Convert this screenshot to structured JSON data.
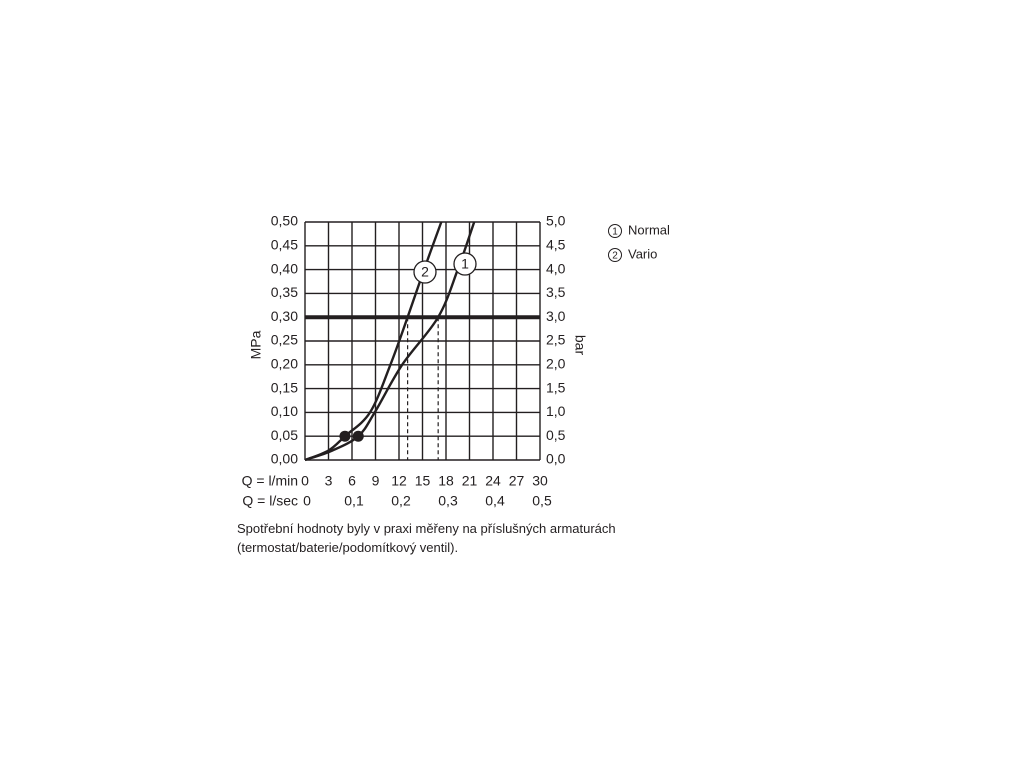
{
  "chart_data": {
    "type": "line",
    "x_label": "Q = l/min",
    "x2_label": "Q = l/sec",
    "y_label": "MPa",
    "y2_label": "bar",
    "xlim": [
      0,
      30
    ],
    "xticks": [
      0,
      3,
      6,
      9,
      12,
      15,
      18,
      21,
      24,
      27,
      30
    ],
    "x2lim": [
      0,
      0.5
    ],
    "x2ticks": [
      0,
      {
        "value": 0.1,
        "label": "0,1"
      },
      {
        "value": 0.2,
        "label": "0,2"
      },
      {
        "value": 0.3,
        "label": "0,3"
      },
      {
        "value": 0.4,
        "label": "0,4"
      },
      {
        "value": 0.5,
        "label": "0,5"
      }
    ],
    "ylim": [
      0,
      0.5
    ],
    "yticks": [
      {
        "value": 0,
        "label": "0,00"
      },
      {
        "value": 0.05,
        "label": "0,05"
      },
      {
        "value": 0.1,
        "label": "0,10"
      },
      {
        "value": 0.15,
        "label": "0,15"
      },
      {
        "value": 0.2,
        "label": "0,20"
      },
      {
        "value": 0.25,
        "label": "0,25"
      },
      {
        "value": 0.3,
        "label": "0,30"
      },
      {
        "value": 0.35,
        "label": "0,35"
      },
      {
        "value": 0.4,
        "label": "0,40"
      },
      {
        "value": 0.45,
        "label": "0,45"
      },
      {
        "value": 0.5,
        "label": "0,50"
      }
    ],
    "y2lim": [
      0,
      5
    ],
    "y2ticks": [
      {
        "value": 0,
        "label": "0,0"
      },
      {
        "value": 0.5,
        "label": "0,5"
      },
      {
        "value": 1,
        "label": "1,0"
      },
      {
        "value": 1.5,
        "label": "1,5"
      },
      {
        "value": 2,
        "label": "2,0"
      },
      {
        "value": 2.5,
        "label": "2,5"
      },
      {
        "value": 3,
        "label": "3,0"
      },
      {
        "value": 3.5,
        "label": "3,5"
      },
      {
        "value": 4,
        "label": "4,0"
      },
      {
        "value": 4.5,
        "label": "4,5"
      },
      {
        "value": 5,
        "label": "5,0"
      }
    ],
    "grid": true,
    "series": [
      {
        "name": "Normal",
        "label": "1",
        "color": "#231f20",
        "x": [
          0,
          3.5,
          6.8,
          8.9,
          12.4,
          17,
          19.5,
          21.6
        ],
        "values": [
          0,
          0.02,
          0.05,
          0.1,
          0.2,
          0.3,
          0.4,
          0.5
        ]
      },
      {
        "name": "Vario",
        "label": "2",
        "color": "#231f20",
        "x": [
          0,
          3,
          5.1,
          8.3,
          10.9,
          13.1,
          15.2,
          17.4
        ],
        "values": [
          0,
          0.02,
          0.05,
          0.1,
          0.2,
          0.3,
          0.4,
          0.5
        ]
      }
    ],
    "points": {
      "x": [
        5.1,
        6.8
      ],
      "values": [
        0.05,
        0.05
      ]
    },
    "hline": 0.3,
    "vlines": [
      13.1,
      17
    ]
  },
  "note": "Spotřební hodnoty byly v praxi měřeny na příslušných armaturách (termostat/baterie/podomítkový ventil)."
}
